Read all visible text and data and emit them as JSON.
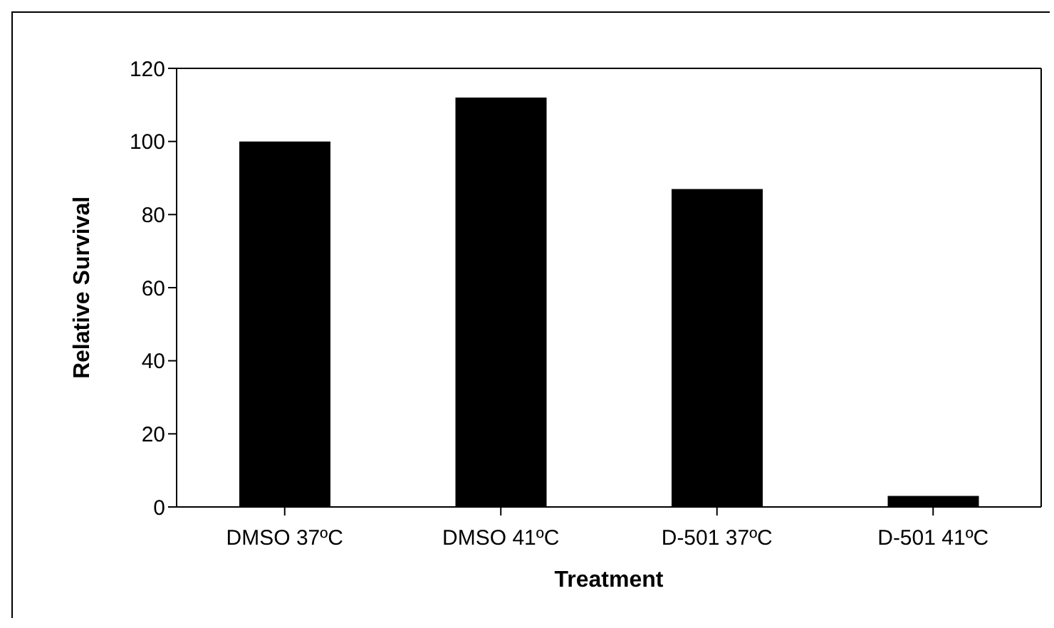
{
  "chart_data": {
    "type": "bar",
    "xlabel": "Treatment",
    "ylabel": "Relative Survival",
    "categories": [
      "DMSO  37ºC",
      "DMSO 41ºC",
      "D-501  37ºC",
      "D-501  41ºC"
    ],
    "values": [
      100,
      112,
      87,
      3
    ],
    "color": "#000000",
    "ylim": [
      0,
      120
    ],
    "yticks": [
      0,
      20,
      40,
      60,
      80,
      100,
      120
    ]
  }
}
